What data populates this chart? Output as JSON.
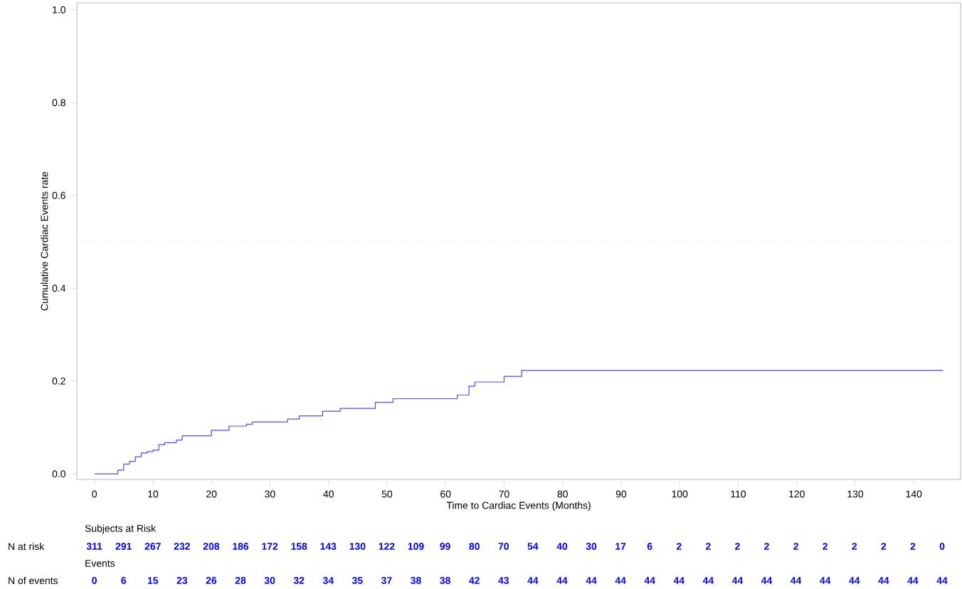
{
  "chart_data": [
    {
      "type": "step",
      "xlabel": "Time to Cardiac Events (Months)",
      "ylabel": "Cumulative Cardiac Events rate",
      "x": [
        0,
        4,
        5,
        6,
        7,
        8,
        9,
        10,
        11,
        12,
        14,
        15,
        20,
        23,
        26,
        27,
        33,
        35,
        39,
        42,
        48,
        51,
        62,
        64,
        65,
        70,
        73,
        145
      ],
      "series": [
        {
          "color": "#4b4bff",
          "values": [
            0,
            0.008,
            0.021,
            0.027,
            0.037,
            0.045,
            0.048,
            0.051,
            0.063,
            0.067,
            0.073,
            0.082,
            0.094,
            0.103,
            0.107,
            0.112,
            0.118,
            0.125,
            0.135,
            0.141,
            0.154,
            0.162,
            0.17,
            0.189,
            0.198,
            0.21,
            0.223,
            0.223
          ]
        }
      ],
      "xlim": [
        -3,
        148
      ],
      "ylim": [
        -0.012,
        1.015
      ],
      "xticks": [
        0,
        10,
        20,
        30,
        40,
        50,
        60,
        70,
        80,
        90,
        100,
        110,
        120,
        130,
        140
      ],
      "yticks": [
        {
          "value": 0,
          "label": "0.0"
        },
        {
          "value": 0.2,
          "label": "0.2"
        },
        {
          "value": 0.4,
          "label": "0.4"
        },
        {
          "value": 0.6,
          "label": "0.6"
        },
        {
          "value": 0.8,
          "label": "0.8"
        },
        {
          "value": 1,
          "label": "1.0"
        }
      ],
      "ref_lines": [
        {
          "axis": "y",
          "value": 0.5,
          "color": "#c0c0c0",
          "line_style": "dotted"
        }
      ],
      "grid": false,
      "marker": "none"
    },
    {
      "type": "other",
      "annotations": [
        "Subjects at Risk",
        "N at risk",
        "311",
        "291",
        "267",
        "232",
        "208",
        "186",
        "172",
        "158",
        "143",
        "130",
        "122",
        "109",
        "99",
        "80",
        "70",
        "54",
        "40",
        "30",
        "17",
        "6",
        "2",
        "2",
        "2",
        "2",
        "2",
        "2",
        "2",
        "2",
        "2",
        "0",
        "Events",
        "N of events",
        "0",
        "6",
        "15",
        "23",
        "26",
        "28",
        "30",
        "32",
        "34",
        "35",
        "37",
        "38",
        "38",
        "42",
        "43",
        "44",
        "44",
        "44",
        "44",
        "44",
        "44",
        "44",
        "44",
        "44",
        "44",
        "44",
        "44",
        "44",
        "44",
        "44"
      ]
    }
  ]
}
